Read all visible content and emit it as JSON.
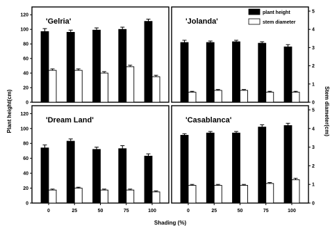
{
  "chart_data": {
    "type": "bar",
    "xlabel": "Shading (%)",
    "ylabel": "Plant height(cm)",
    "y2label": "Stem diameter(cm)",
    "categories": [
      "0",
      "25",
      "50",
      "75",
      "100"
    ],
    "y_ticks": [
      "0",
      "20",
      "40",
      "60",
      "80",
      "100",
      "120"
    ],
    "y2_ticks": [
      "0",
      "1",
      "2",
      "3",
      "4",
      "5"
    ],
    "ylim": [
      0,
      125
    ],
    "y2lim": [
      0,
      5
    ],
    "legend": [
      "plant height",
      "stem diameter"
    ],
    "legend_position": "top-right",
    "colors": {
      "plant_height": "#000000",
      "stem_diameter": "#ffffff"
    },
    "panels": [
      {
        "cultivar": "'Gelria'",
        "series": [
          {
            "name": "plant height",
            "axis": "left",
            "values": [
              97,
              96,
              99,
              100,
              111
            ],
            "errors": [
              4,
              3,
              3,
              3,
              3
            ]
          },
          {
            "name": "stem diameter",
            "axis": "right",
            "values": [
              1.75,
              1.75,
              1.6,
              1.95,
              1.4
            ],
            "errors": [
              0.08,
              0.08,
              0.08,
              0.08,
              0.08
            ]
          }
        ]
      },
      {
        "cultivar": "'Jolanda'",
        "series": [
          {
            "name": "plant height",
            "axis": "left",
            "values": [
              82,
              82,
              83,
              81,
              76
            ],
            "errors": [
              3,
              2,
              2,
              2,
              3
            ]
          },
          {
            "name": "stem diameter",
            "axis": "right",
            "values": [
              0.55,
              0.65,
              0.65,
              0.55,
              0.55
            ],
            "errors": [
              0.05,
              0.05,
              0.05,
              0.05,
              0.05
            ]
          }
        ]
      },
      {
        "cultivar": "'Dream Land'",
        "series": [
          {
            "name": "plant height",
            "axis": "left",
            "values": [
              74,
              83,
              72,
              73,
              63
            ],
            "errors": [
              4,
              3,
              3,
              4,
              3
            ]
          },
          {
            "name": "stem diameter",
            "axis": "right",
            "values": [
              0.7,
              0.8,
              0.7,
              0.7,
              0.6
            ],
            "errors": [
              0.05,
              0.05,
              0.05,
              0.05,
              0.05
            ]
          }
        ]
      },
      {
        "cultivar": "'Casablanca'",
        "series": [
          {
            "name": "plant height",
            "axis": "left",
            "values": [
              91,
              94,
              94,
              102,
              104
            ],
            "errors": [
              2,
              2,
              2,
              3,
              3
            ]
          },
          {
            "name": "stem diameter",
            "axis": "right",
            "values": [
              0.95,
              0.95,
              0.95,
              1.05,
              1.25
            ],
            "errors": [
              0.05,
              0.05,
              0.05,
              0.05,
              0.08
            ]
          }
        ]
      }
    ]
  }
}
